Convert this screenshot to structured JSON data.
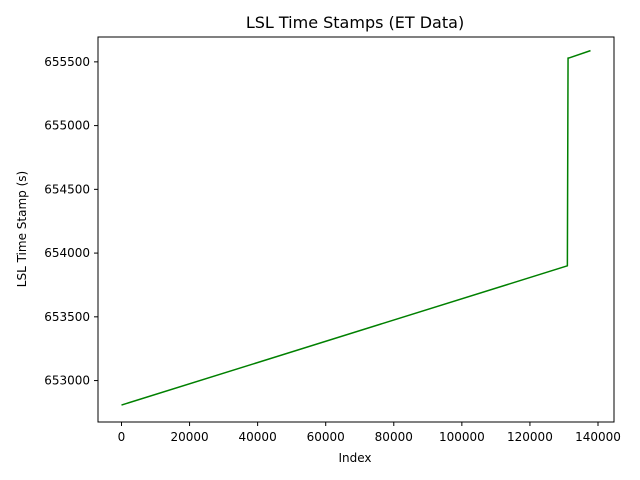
{
  "chart_data": {
    "type": "line",
    "title": "LSL Time Stamps (ET Data)",
    "xlabel": "Index",
    "ylabel": "LSL Time Stamp (s)",
    "xlim": [
      -6900,
      144700
    ],
    "ylim": [
      652675,
      655695
    ],
    "xticks": [
      0,
      20000,
      40000,
      60000,
      80000,
      100000,
      120000,
      140000
    ],
    "xtick_labels": [
      "0",
      "20000",
      "40000",
      "60000",
      "80000",
      "100000",
      "120000",
      "140000"
    ],
    "yticks": [
      653000,
      653500,
      654000,
      654500,
      655000,
      655500
    ],
    "ytick_labels": [
      "653000",
      "653500",
      "654000",
      "654500",
      "655000",
      "655500"
    ],
    "grid": false,
    "series": [
      {
        "color": "#008000",
        "x": [
          0,
          131000,
          131200,
          131400,
          137800
        ],
        "y": [
          652808,
          653900,
          655530,
          655530,
          655588
        ]
      }
    ]
  }
}
